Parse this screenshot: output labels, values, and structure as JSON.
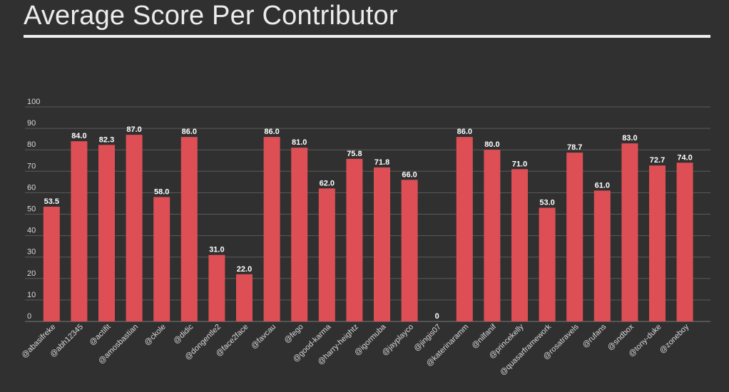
{
  "header": {
    "title": "Average Score Per Contributor"
  },
  "colors": {
    "background": "#303030",
    "bar": "#dd4f55",
    "grid": "#5a5a5a",
    "text": "#d8d8d8"
  },
  "chart_data": {
    "type": "bar",
    "title": "Average Score Per Contributor",
    "xlabel": "",
    "ylabel": "",
    "ylim": [
      0,
      100
    ],
    "yticks": [
      0,
      10,
      20,
      30,
      40,
      50,
      60,
      70,
      80,
      90,
      100
    ],
    "grid": true,
    "legend": "none",
    "categories": [
      "@abasifreke",
      "@abh12345",
      "@actifit",
      "@amosbastian",
      "@ckole",
      "@didic",
      "@dongentle2",
      "@face2face",
      "@favcau",
      "@fego",
      "@good-karma",
      "@harry-heightz",
      "@igormuba",
      "@jayplayco",
      "@jingis07",
      "@katerinaramm",
      "@nilfanif",
      "@princekelly",
      "@quasarframework",
      "@rosatravels",
      "@rufans",
      "@sndbox",
      "@tony-duke",
      "@zoneboy"
    ],
    "values": [
      53.5,
      84.0,
      82.3,
      87.0,
      58.0,
      86.0,
      31.0,
      22.0,
      86.0,
      81.0,
      62.0,
      75.8,
      71.8,
      66.0,
      0,
      86.0,
      80.0,
      71.0,
      53.0,
      78.7,
      61.0,
      83.0,
      72.7,
      74.0
    ],
    "value_labels": [
      "53.5",
      "84.0",
      "82.3",
      "87.0",
      "58.0",
      "86.0",
      "31.0",
      "22.0",
      "86.0",
      "81.0",
      "62.0",
      "75.8",
      "71.8",
      "66.0",
      "0",
      "86.0",
      "80.0",
      "71.0",
      "53.0",
      "78.7",
      "61.0",
      "83.0",
      "72.7",
      "74.0"
    ]
  }
}
